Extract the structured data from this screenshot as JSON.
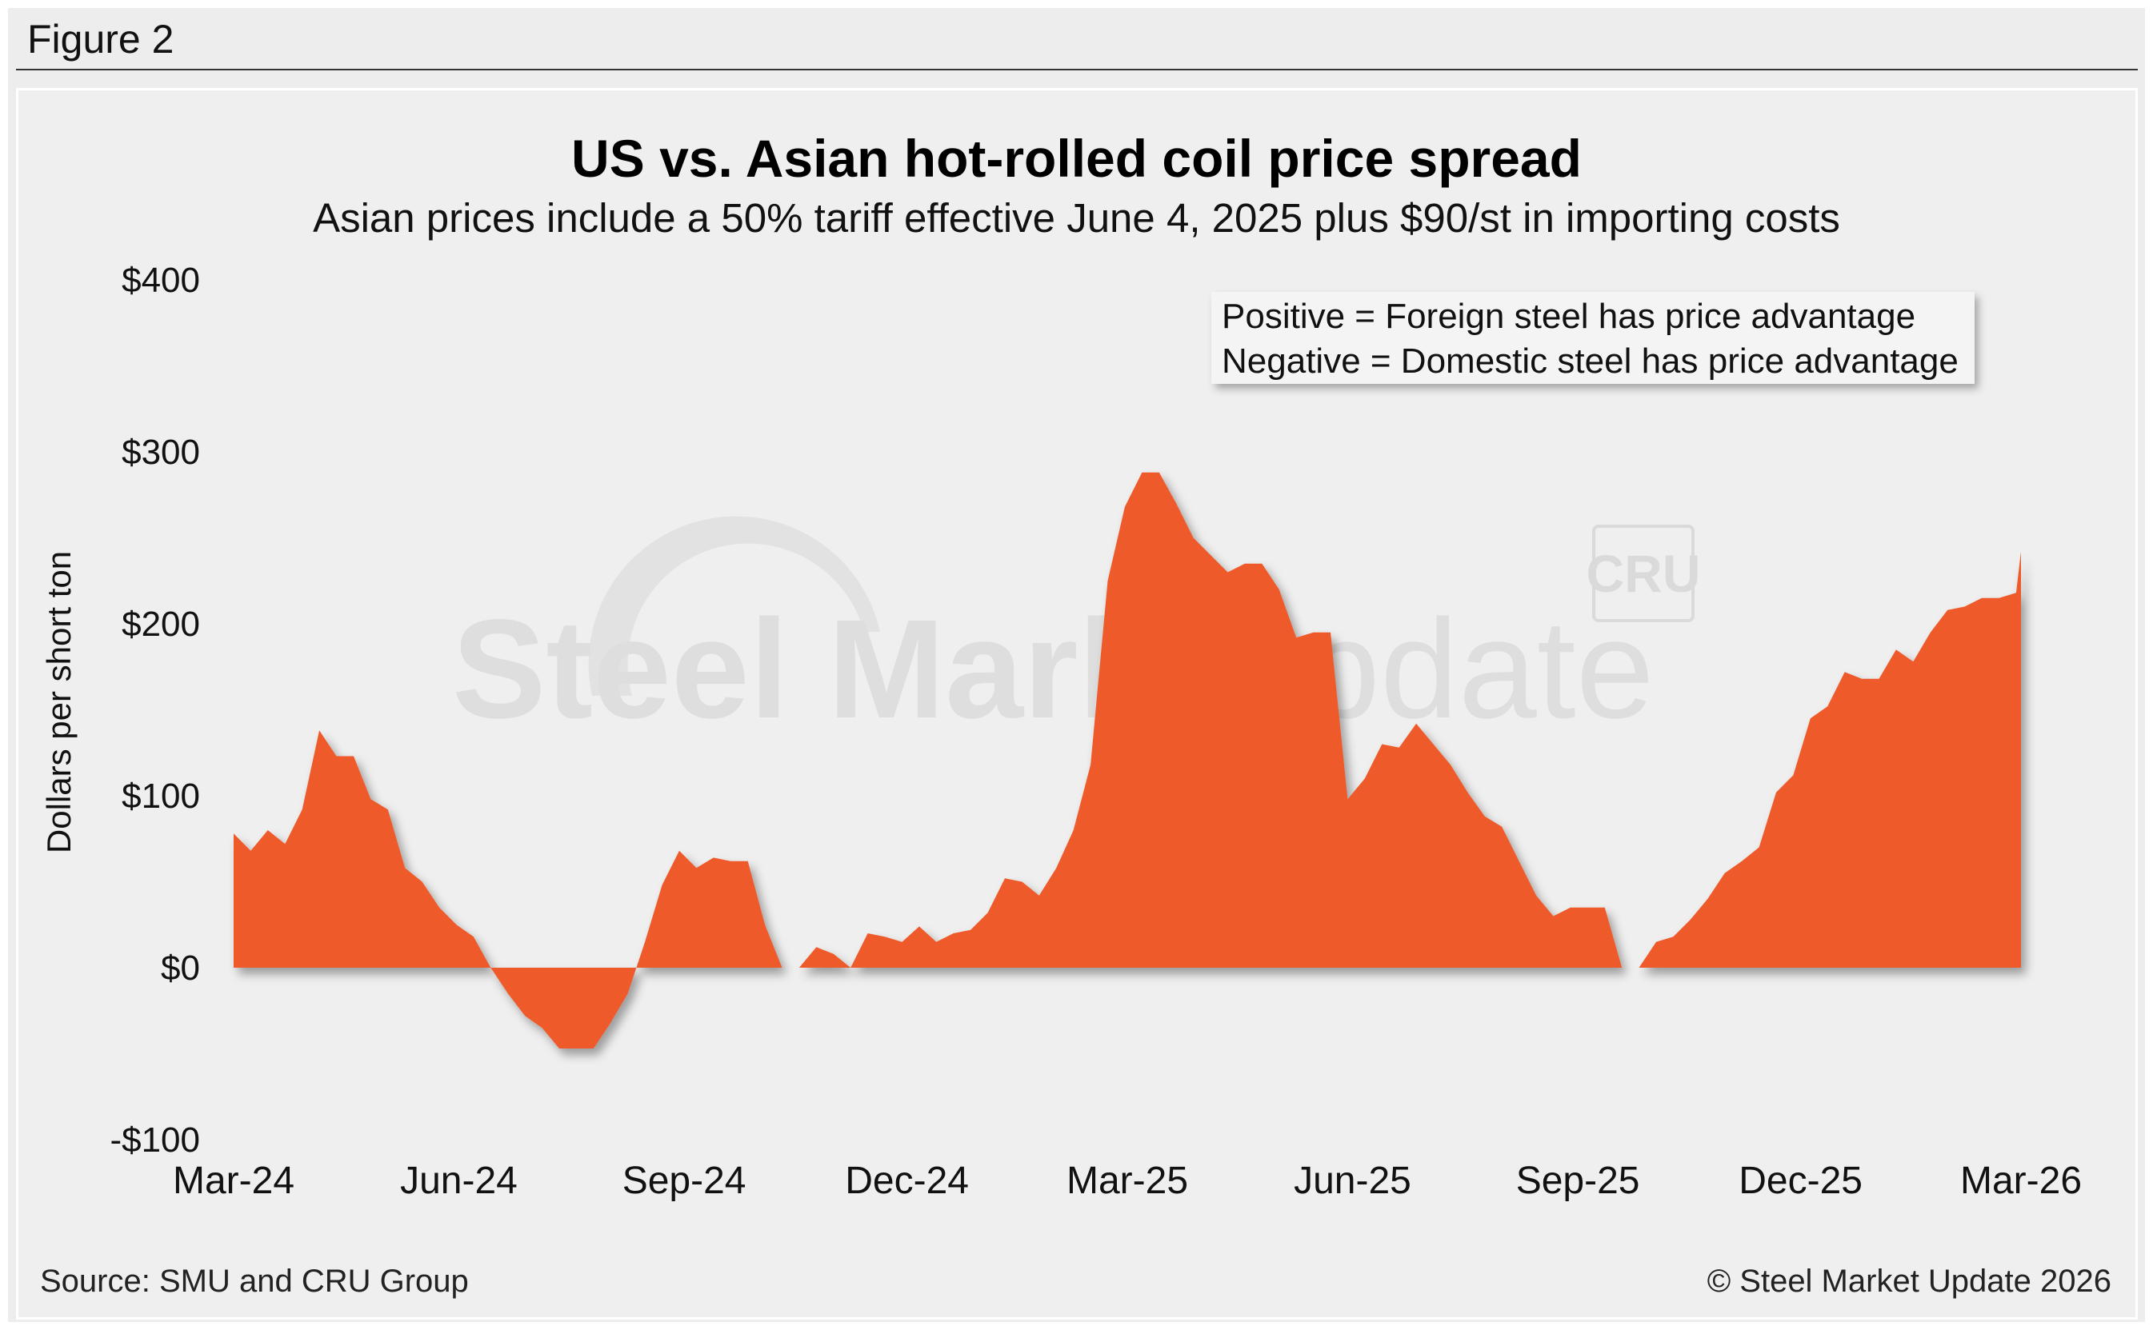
{
  "figure_label": "Figure 2",
  "source": "Source: SMU and CRU Group",
  "copyright": "© Steel Market Update 2026",
  "watermark": {
    "text_bold": "Steel Market",
    "text_light": "Update",
    "logo_text": "CRU"
  },
  "colors": {
    "area": "#ee5a2a",
    "background": "#efefef",
    "text": "#111111"
  },
  "chart_data": {
    "type": "area",
    "title": "US vs. Asian hot-rolled coil price spread",
    "subtitle": "Asian prices include a 50% tariff effective June 4, 2025 plus $90/st in importing costs",
    "ylabel": "Dollars per short ton",
    "xlabel": "",
    "ylim": [
      -100,
      400
    ],
    "yticks": [
      400,
      300,
      200,
      100,
      0,
      -100
    ],
    "ytick_labels": [
      "$400",
      "$300",
      "$200",
      "$100",
      "$0",
      "-$100"
    ],
    "xlim": [
      "2024-03-01",
      "2026-03-01"
    ],
    "xticks": [
      "2024-03-01",
      "2024-06-01",
      "2024-09-01",
      "2024-12-01",
      "2025-03-01",
      "2025-06-01",
      "2025-09-01",
      "2025-12-01",
      "2026-03-01"
    ],
    "xtick_labels": [
      "Mar-24",
      "Jun-24",
      "Sep-24",
      "Dec-24",
      "Mar-25",
      "Jun-25",
      "Sep-25",
      "Dec-25",
      "Mar-26"
    ],
    "annotation": [
      "Positive = Foreign steel has price advantage",
      "Negative = Domestic steel has price advantage"
    ],
    "legend": false,
    "grid": false,
    "series": [
      {
        "x": [
          "2024-03-01",
          "2024-03-08",
          "2024-03-15",
          "2024-03-22",
          "2024-03-29",
          "2024-04-05",
          "2024-04-12",
          "2024-04-19",
          "2024-04-26",
          "2024-05-03",
          "2024-05-10",
          "2024-05-17",
          "2024-05-24",
          "2024-05-31",
          "2024-06-07",
          "2024-06-14",
          "2024-06-21",
          "2024-06-28",
          "2024-07-05",
          "2024-07-12",
          "2024-07-19",
          "2024-07-26",
          "2024-08-02",
          "2024-08-09",
          "2024-08-16",
          "2024-08-23",
          "2024-08-30",
          "2024-09-06",
          "2024-09-13",
          "2024-09-20",
          "2024-09-27",
          "2024-10-04",
          "2024-10-11",
          "2024-10-18",
          "2024-10-25",
          "2024-11-01",
          "2024-11-08",
          "2024-11-15",
          "2024-11-22",
          "2024-11-29",
          "2024-12-06",
          "2024-12-13",
          "2024-12-20",
          "2024-12-27",
          "2025-01-03",
          "2025-01-10",
          "2025-01-17",
          "2025-01-24",
          "2025-01-31",
          "2025-02-07",
          "2025-02-14",
          "2025-02-21",
          "2025-02-28",
          "2025-03-07",
          "2025-03-14",
          "2025-03-21",
          "2025-03-28",
          "2025-04-04",
          "2025-04-11",
          "2025-04-18",
          "2025-04-25",
          "2025-05-02",
          "2025-05-09",
          "2025-05-16",
          "2025-05-23",
          "2025-05-30",
          "2025-06-06",
          "2025-06-13",
          "2025-06-20",
          "2025-06-27",
          "2025-07-04",
          "2025-07-11",
          "2025-07-18",
          "2025-07-25",
          "2025-08-01",
          "2025-08-08",
          "2025-08-15",
          "2025-08-22",
          "2025-08-29",
          "2025-09-05",
          "2025-09-12",
          "2025-09-19",
          "2025-09-26",
          "2025-10-03",
          "2025-10-10",
          "2025-10-17",
          "2025-10-24",
          "2025-10-31",
          "2025-11-07",
          "2025-11-14",
          "2025-11-21",
          "2025-11-28",
          "2025-12-05",
          "2025-12-12",
          "2025-12-19",
          "2025-12-26",
          "2026-01-02",
          "2026-01-09",
          "2026-01-16",
          "2026-01-23",
          "2026-01-30",
          "2026-02-06",
          "2026-02-13",
          "2026-02-20",
          "2026-02-27",
          "2026-03-01"
        ],
        "values": [
          78,
          68,
          80,
          72,
          92,
          138,
          123,
          123,
          98,
          92,
          58,
          50,
          35,
          25,
          18,
          0,
          -15,
          -28,
          -35,
          -47,
          -47,
          -47,
          -32,
          -15,
          15,
          48,
          68,
          58,
          64,
          62,
          62,
          25,
          0,
          0,
          12,
          8,
          0,
          20,
          18,
          15,
          24,
          15,
          20,
          22,
          32,
          52,
          50,
          42,
          58,
          80,
          118,
          225,
          268,
          288,
          288,
          270,
          250,
          240,
          230,
          235,
          235,
          220,
          192,
          195,
          195,
          98,
          110,
          130,
          128,
          142,
          130,
          118,
          102,
          88,
          82,
          62,
          42,
          30,
          35,
          35,
          35,
          0,
          0,
          15,
          18,
          28,
          40,
          55,
          62,
          70,
          102,
          112,
          145,
          152,
          172,
          168,
          168,
          185,
          178,
          195,
          208,
          210,
          215,
          215,
          218,
          242
        ]
      }
    ]
  }
}
